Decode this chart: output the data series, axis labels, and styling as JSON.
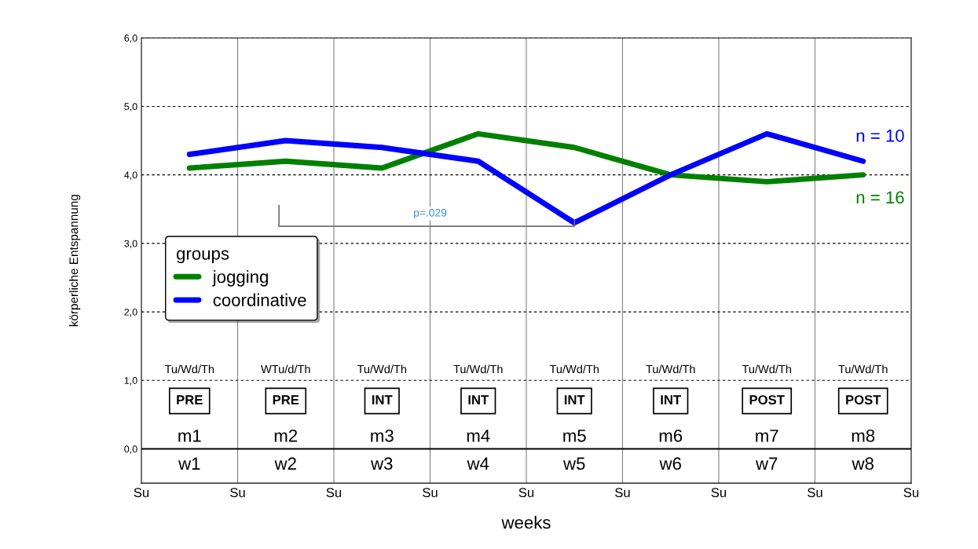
{
  "chart_data": {
    "type": "line",
    "xlabel": "weeks",
    "ylabel": "körperliche Entspannung",
    "legend_title": "groups",
    "categories": [
      "w1",
      "w2",
      "w3",
      "w4",
      "w5",
      "w6",
      "w7",
      "w8"
    ],
    "series": [
      {
        "name": "jogging",
        "color": "#008000",
        "values": [
          4.1,
          4.2,
          4.1,
          4.6,
          4.4,
          4.0,
          3.9,
          4.0
        ]
      },
      {
        "name": "coordinative",
        "color": "#0000ff",
        "values": [
          4.3,
          4.5,
          4.4,
          4.2,
          3.3,
          4.0,
          4.6,
          4.2
        ]
      }
    ],
    "ylim": [
      -0.5,
      6.0
    ],
    "yticks": [
      {
        "value": 0,
        "label": "0,0"
      },
      {
        "value": 1,
        "label": "1,0"
      },
      {
        "value": 2,
        "label": "2,0"
      },
      {
        "value": 3,
        "label": "3,0"
      },
      {
        "value": 4,
        "label": "4,0"
      },
      {
        "value": 5,
        "label": "5,0"
      },
      {
        "value": 6,
        "label": "6,0"
      }
    ],
    "grid": true,
    "legend": "left",
    "marker": "none",
    "line_style": "solid",
    "annotations": [
      "n = 10",
      "n = 16",
      "p=.029",
      "Tu/Wd/Th",
      "WTu/d/Th",
      "Tu/Wd/Th",
      "Tu/Wd/Th",
      "Tu/Wd/Th",
      "Tu/Wd/Th",
      "Tu/Wd/Th",
      "Tu/Wd/Th",
      "PRE",
      "PRE",
      "INT",
      "INT",
      "INT",
      "INT",
      "POST",
      "POST",
      "m1",
      "m2",
      "m3",
      "m4",
      "m5",
      "m6",
      "m7",
      "m8",
      "Su",
      "Su",
      "Su",
      "Su",
      "Su",
      "Su",
      "Su",
      "Su",
      "Su"
    ]
  }
}
